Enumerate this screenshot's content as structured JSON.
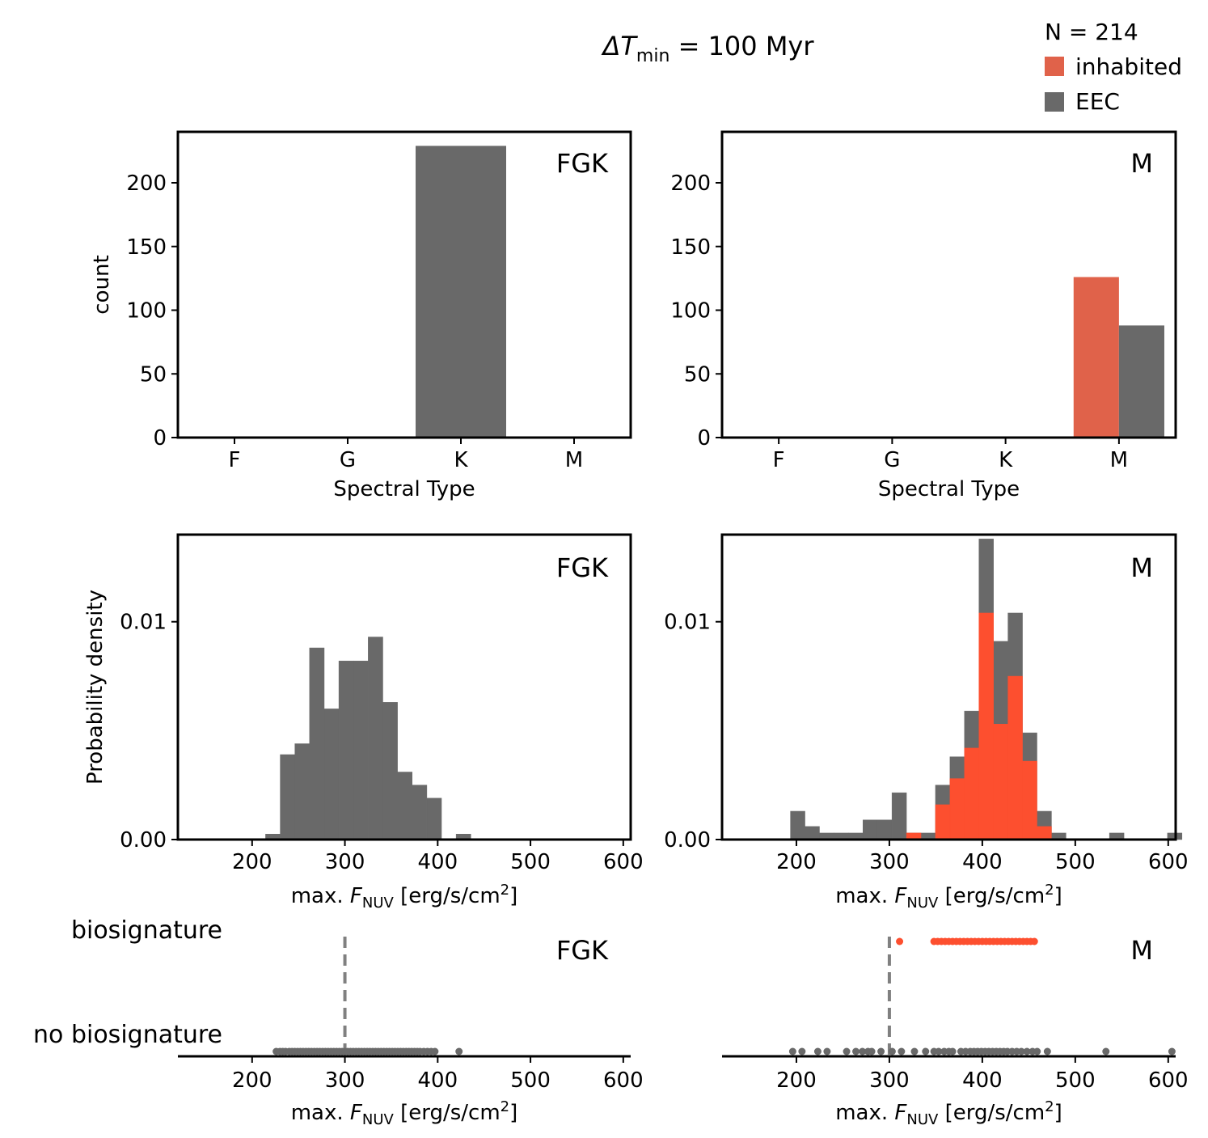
{
  "colors": {
    "eec": "#696969",
    "inhabited_bar": "#e0624a",
    "inhabited_hist": "#fd4f2f",
    "biosig_dot": "#fd4f2f",
    "nobio_dot": "#696969",
    "threshold": "#808080"
  },
  "title": {
    "prefix": "ΔT",
    "sub": "min",
    "rest": " = 100 Myr"
  },
  "legend": {
    "n_label": "N = 214",
    "items": [
      {
        "label": "inhabited",
        "color": "#e0624a"
      },
      {
        "label": "EEC",
        "color": "#696969"
      }
    ]
  },
  "chart_data": [
    {
      "type": "bar",
      "panel": "FGK",
      "categories": [
        "F",
        "G",
        "K",
        "M"
      ],
      "series": [
        {
          "name": "EEC",
          "values": [
            0,
            0,
            229,
            0
          ]
        }
      ],
      "xlabel": "Spectral Type",
      "ylabel": "count",
      "yticks": [
        0,
        50,
        100,
        150,
        200
      ],
      "ylim": [
        0,
        240
      ]
    },
    {
      "type": "bar",
      "panel": "M",
      "categories": [
        "F",
        "G",
        "K",
        "M"
      ],
      "series": [
        {
          "name": "inhabited",
          "values": [
            0,
            0,
            0,
            126
          ]
        },
        {
          "name": "EEC",
          "values": [
            0,
            0,
            0,
            88
          ]
        }
      ],
      "xlabel": "Spectral Type",
      "ylabel": "",
      "yticks": [
        0,
        50,
        100,
        150,
        200
      ],
      "ylim": [
        0,
        240
      ]
    },
    {
      "type": "histogram",
      "panel": "FGK",
      "bins": [
        {
          "x0": 214.5,
          "x1": 230.3,
          "eec": 0.00025,
          "inh": 0
        },
        {
          "x0": 230.3,
          "x1": 246.1,
          "eec": 0.0039,
          "inh": 0
        },
        {
          "x0": 246.1,
          "x1": 261.9,
          "eec": 0.0044,
          "inh": 0
        },
        {
          "x0": 261.9,
          "x1": 277.7,
          "eec": 0.0088,
          "inh": 0
        },
        {
          "x0": 277.7,
          "x1": 293.5,
          "eec": 0.006,
          "inh": 0
        },
        {
          "x0": 293.5,
          "x1": 309.3,
          "eec": 0.0082,
          "inh": 0
        },
        {
          "x0": 309.3,
          "x1": 325.1,
          "eec": 0.0082,
          "inh": 0
        },
        {
          "x0": 325.1,
          "x1": 340.9,
          "eec": 0.0093,
          "inh": 0
        },
        {
          "x0": 340.9,
          "x1": 356.7,
          "eec": 0.0063,
          "inh": 0
        },
        {
          "x0": 356.7,
          "x1": 372.5,
          "eec": 0.0031,
          "inh": 0
        },
        {
          "x0": 372.5,
          "x1": 388.3,
          "eec": 0.0025,
          "inh": 0
        },
        {
          "x0": 388.3,
          "x1": 404.1,
          "eec": 0.0019,
          "inh": 0
        },
        {
          "x0": 404.1,
          "x1": 419.9,
          "eec": 0,
          "inh": 0
        },
        {
          "x0": 419.9,
          "x1": 435.7,
          "eec": 0.00025,
          "inh": 0
        }
      ],
      "xlabel_prefix": "max. ",
      "xlabel_var": "F",
      "xlabel_sub": "NUV",
      "xlabel_unit": " [erg/s/cm",
      "xlabel_sup": "2",
      "xlabel_end": "]",
      "ylabel": "Probability density",
      "xticks": [
        200,
        300,
        400,
        500,
        600
      ],
      "yticks": [
        "0.00",
        "0.01"
      ],
      "xlim": [
        120,
        608
      ],
      "ylim": [
        0,
        0.014
      ]
    },
    {
      "type": "histogram",
      "panel": "M",
      "bins": [
        {
          "x0": 193.6,
          "x1": 209.2,
          "eec": 0.0013,
          "inh": 0
        },
        {
          "x0": 209.2,
          "x1": 224.8,
          "eec": 0.0006,
          "inh": 0
        },
        {
          "x0": 224.8,
          "x1": 240.4,
          "eec": 0.0003,
          "inh": 0
        },
        {
          "x0": 240.4,
          "x1": 256.0,
          "eec": 0.0003,
          "inh": 0
        },
        {
          "x0": 256.0,
          "x1": 271.6,
          "eec": 0.0003,
          "inh": 0
        },
        {
          "x0": 271.6,
          "x1": 287.2,
          "eec": 0.0009,
          "inh": 0
        },
        {
          "x0": 287.2,
          "x1": 302.8,
          "eec": 0.0009,
          "inh": 0
        },
        {
          "x0": 302.8,
          "x1": 318.4,
          "eec": 0.00215,
          "inh": 0
        },
        {
          "x0": 318.4,
          "x1": 334.0,
          "eec": 0.0003,
          "inh": 0.0003
        },
        {
          "x0": 334.0,
          "x1": 349.6,
          "eec": 0.0003,
          "inh": 0
        },
        {
          "x0": 349.6,
          "x1": 365.2,
          "eec": 0.0025,
          "inh": 0.0016
        },
        {
          "x0": 365.2,
          "x1": 380.8,
          "eec": 0.0038,
          "inh": 0.0028
        },
        {
          "x0": 380.8,
          "x1": 396.4,
          "eec": 0.0059,
          "inh": 0.0042
        },
        {
          "x0": 396.4,
          "x1": 412.0,
          "eec": 0.0138,
          "inh": 0.0104
        },
        {
          "x0": 412.0,
          "x1": 427.6,
          "eec": 0.0091,
          "inh": 0.0053
        },
        {
          "x0": 427.6,
          "x1": 443.2,
          "eec": 0.0104,
          "inh": 0.0075
        },
        {
          "x0": 443.2,
          "x1": 458.8,
          "eec": 0.0049,
          "inh": 0.0036
        },
        {
          "x0": 458.8,
          "x1": 474.4,
          "eec": 0.0013,
          "inh": 0.0006
        },
        {
          "x0": 474.4,
          "x1": 490.0,
          "eec": 0.0003,
          "inh": 0
        },
        {
          "x0": 490.0,
          "x1": 505.6,
          "eec": 0,
          "inh": 0
        },
        {
          "x0": 505.6,
          "x1": 521.2,
          "eec": 0,
          "inh": 0
        },
        {
          "x0": 521.2,
          "x1": 536.8,
          "eec": 0,
          "inh": 0
        },
        {
          "x0": 536.8,
          "x1": 552.4,
          "eec": 0.0003,
          "inh": 0
        },
        {
          "x0": 552.4,
          "x1": 568.0,
          "eec": 0,
          "inh": 0
        },
        {
          "x0": 568.0,
          "x1": 583.6,
          "eec": 0,
          "inh": 0
        },
        {
          "x0": 583.6,
          "x1": 599.2,
          "eec": 0,
          "inh": 0
        },
        {
          "x0": 599.2,
          "x1": 614.8,
          "eec": 0.0003,
          "inh": 0
        }
      ],
      "xlabel_prefix": "max. ",
      "xlabel_var": "F",
      "xlabel_sub": "NUV",
      "xlabel_unit": " [erg/s/cm",
      "xlabel_sup": "2",
      "xlabel_end": "]",
      "ylabel": "",
      "xticks": [
        200,
        300,
        400,
        500,
        600
      ],
      "yticks": [
        "0.00",
        "0.01"
      ],
      "xlim": [
        120,
        608
      ],
      "ylim": [
        0,
        0.014
      ]
    },
    {
      "type": "scatter",
      "panel": "FGK",
      "row_labels": [
        "biosignature",
        "no biosignature"
      ],
      "threshold": 300,
      "biosignature_x": [],
      "no_biosignature_x": [
        226,
        230,
        233,
        236,
        240,
        243,
        246,
        249,
        252,
        255,
        258,
        261,
        264,
        267,
        270,
        273,
        276,
        279,
        282,
        285,
        288,
        291,
        294,
        297,
        300,
        303,
        306,
        309,
        312,
        315,
        318,
        321,
        324,
        327,
        330,
        333,
        336,
        339,
        342,
        345,
        348,
        351,
        354,
        357,
        360,
        363,
        366,
        369,
        372,
        375,
        378,
        381,
        385,
        389,
        393,
        397,
        423
      ],
      "xlabel_prefix": "max. ",
      "xlabel_var": "F",
      "xlabel_sub": "NUV",
      "xlabel_unit": " [erg/s/cm",
      "xlabel_sup": "2",
      "xlabel_end": "]",
      "xticks": [
        200,
        300,
        400,
        500,
        600
      ],
      "xlim": [
        120,
        608
      ]
    },
    {
      "type": "scatter",
      "panel": "M",
      "row_labels": [],
      "threshold": 300,
      "biosignature_x": [
        311,
        348,
        352,
        356,
        360,
        364,
        368,
        372,
        376,
        380,
        384,
        388,
        392,
        396,
        400,
        404,
        408,
        412,
        416,
        420,
        424,
        428,
        432,
        436,
        440,
        444,
        448,
        452,
        456
      ],
      "no_biosignature_x": [
        196,
        206,
        223,
        233,
        254,
        264,
        271,
        277,
        281,
        291,
        303,
        313,
        327,
        339,
        348,
        353,
        359,
        364,
        368,
        377,
        382,
        387,
        391,
        395,
        399,
        403,
        407,
        411,
        415,
        419,
        423,
        427,
        432,
        437,
        442,
        448,
        454,
        459,
        470,
        533,
        604
      ],
      "xlabel_prefix": "max. ",
      "xlabel_var": "F",
      "xlabel_sub": "NUV",
      "xlabel_unit": " [erg/s/cm",
      "xlabel_sup": "2",
      "xlabel_end": "]",
      "xticks": [
        200,
        300,
        400,
        500,
        600
      ],
      "xlim": [
        120,
        608
      ]
    }
  ]
}
